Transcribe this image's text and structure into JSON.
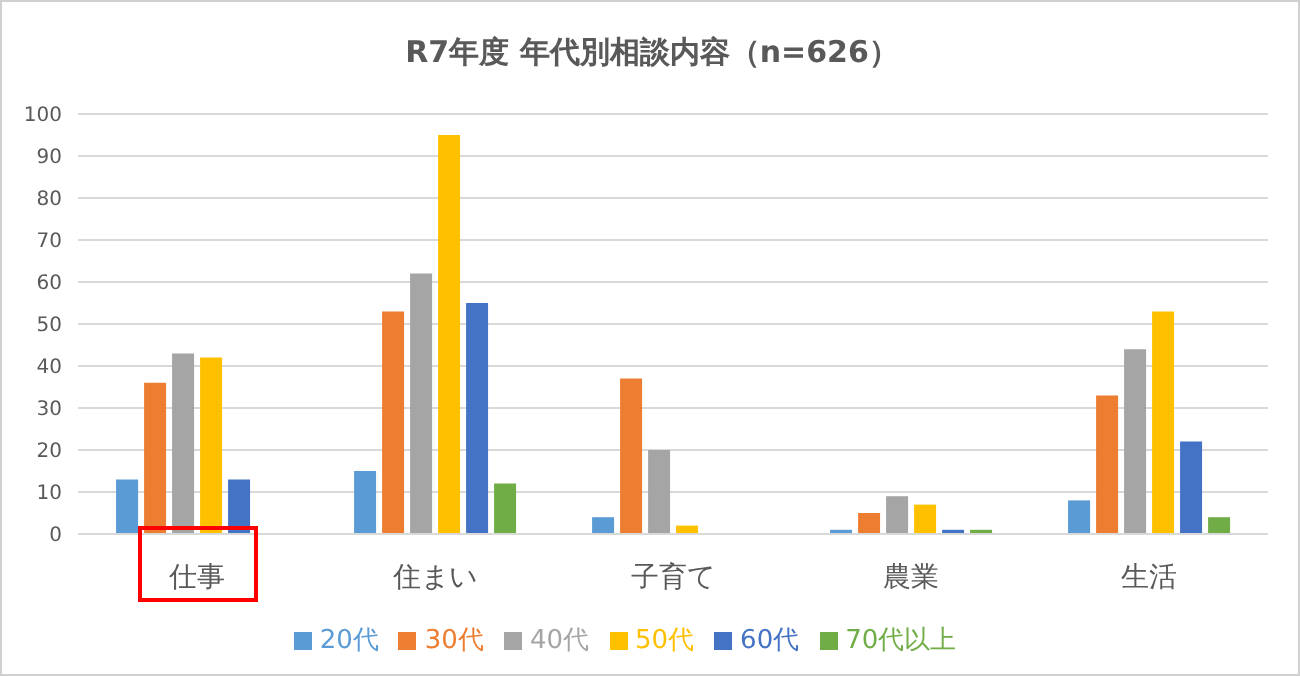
{
  "chart_data": {
    "type": "bar",
    "title": "R7年度 年代別相談内容（n=626）",
    "categories": [
      "仕事",
      "住まい",
      "子育て",
      "農業",
      "生活"
    ],
    "series": [
      {
        "name": "20代",
        "color": "#5b9bd5",
        "values": [
          13,
          15,
          4,
          1,
          8
        ]
      },
      {
        "name": "30代",
        "color": "#ed7d31",
        "values": [
          36,
          53,
          37,
          5,
          33
        ]
      },
      {
        "name": "40代",
        "color": "#a5a5a5",
        "values": [
          43,
          62,
          20,
          9,
          44
        ]
      },
      {
        "name": "50代",
        "color": "#ffc000",
        "values": [
          42,
          95,
          2,
          7,
          53
        ]
      },
      {
        "name": "60代",
        "color": "#4472c4",
        "values": [
          13,
          55,
          0,
          1,
          22
        ]
      },
      {
        "name": "70代以上",
        "color": "#70ad47",
        "values": [
          0,
          12,
          0,
          1,
          4
        ]
      }
    ],
    "ylim": [
      0,
      100
    ],
    "yticks": [
      0,
      10,
      20,
      30,
      40,
      50,
      60,
      70,
      80,
      90,
      100
    ],
    "grid": "y",
    "legend": "bottom"
  }
}
